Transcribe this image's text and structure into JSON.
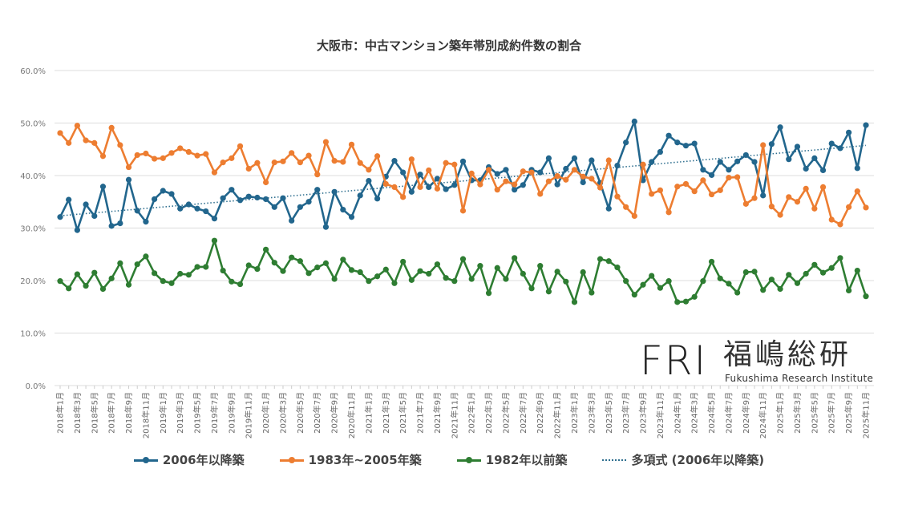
{
  "chart_data": {
    "type": "line",
    "title": "大阪市：中古マンション築年帯別成約件数の割合",
    "xlabel": "",
    "ylabel": "",
    "ylim": [
      0,
      60
    ],
    "yticks": [
      "0.0%",
      "10.0%",
      "20.0%",
      "30.0%",
      "40.0%",
      "50.0%",
      "60.0%"
    ],
    "grid": true,
    "legend_position": "bottom",
    "start": {
      "year": 2018,
      "month": 1
    },
    "end": {
      "year": 2025,
      "month": 11
    },
    "series": [
      {
        "name": "2006年以降築",
        "color": "#22668d",
        "values": [
          32.1,
          35.4,
          29.6,
          34.5,
          32.3,
          37.9,
          30.4,
          30.9,
          39.2,
          33.3,
          31.2,
          35.5,
          37.1,
          36.5,
          33.7,
          34.5,
          33.7,
          33.2,
          31.8,
          35.7,
          37.3,
          35.3,
          36.0,
          35.8,
          35.5,
          34.0,
          35.7,
          31.4,
          34.0,
          35.0,
          37.3,
          30.2,
          36.9,
          33.5,
          32.1,
          36.2,
          39.0,
          35.6,
          39.8,
          42.8,
          40.6,
          36.9,
          40.2,
          37.8,
          39.4,
          37.4,
          38.2,
          42.7,
          39.1,
          39.1,
          41.6,
          40.3,
          41.1,
          37.3,
          38.2,
          41.1,
          40.6,
          43.3,
          38.3,
          41.3,
          43.3,
          38.7,
          42.9,
          38.6,
          33.7,
          41.9,
          46.3,
          50.3,
          39.1,
          42.6,
          44.5,
          47.6,
          46.3,
          45.7,
          46.1,
          41.1,
          40.1,
          42.6,
          41.1,
          42.7,
          43.9,
          42.6,
          36.2,
          46.0,
          49.2,
          43.1,
          45.5,
          41.3,
          43.3,
          41.0,
          46.1,
          45.2,
          48.2,
          41.4,
          49.6
        ]
      },
      {
        "name": "1983年~2005年築",
        "color": "#ed7d31",
        "values": [
          48.1,
          46.2,
          49.5,
          46.7,
          46.2,
          43.7,
          49.1,
          45.8,
          41.6,
          43.9,
          44.2,
          43.2,
          43.3,
          44.3,
          45.2,
          44.5,
          43.8,
          44.1,
          40.6,
          42.5,
          43.3,
          45.6,
          41.3,
          42.4,
          38.7,
          42.5,
          42.7,
          44.3,
          42.5,
          43.8,
          40.2,
          46.4,
          42.8,
          42.6,
          45.9,
          42.4,
          41.1,
          43.7,
          38.4,
          37.8,
          35.9,
          43.1,
          37.8,
          41.0,
          37.5,
          42.4,
          42.1,
          33.3,
          40.4,
          38.3,
          41.1,
          37.3,
          38.9,
          38.3,
          40.8,
          40.6,
          36.5,
          38.9,
          39.9,
          39.2,
          41.1,
          39.8,
          39.4,
          37.7,
          42.9,
          36.0,
          34.0,
          32.3,
          42.1,
          36.5,
          37.2,
          33.0,
          37.9,
          38.4,
          37.0,
          39.1,
          36.4,
          37.2,
          39.6,
          39.7,
          34.6,
          35.7,
          45.8,
          34.1,
          32.5,
          35.9,
          35.0,
          37.5,
          33.7,
          37.8,
          31.6,
          30.7,
          34.0,
          37.0,
          33.9
        ]
      },
      {
        "name": "1982年以前築",
        "color": "#2e7d32",
        "values": [
          19.9,
          18.5,
          21.2,
          19.0,
          21.5,
          18.4,
          20.4,
          23.3,
          19.2,
          23.1,
          24.6,
          21.4,
          19.9,
          19.5,
          21.3,
          21.1,
          22.6,
          22.6,
          27.6,
          21.9,
          19.8,
          19.3,
          22.9,
          22.2,
          25.9,
          23.4,
          21.8,
          24.4,
          23.7,
          21.4,
          22.5,
          23.3,
          20.3,
          24.0,
          22.0,
          21.6,
          19.9,
          20.8,
          22.1,
          19.5,
          23.6,
          20.1,
          21.8,
          21.3,
          23.1,
          20.5,
          19.9,
          24.1,
          20.3,
          22.8,
          17.6,
          22.4,
          20.3,
          24.3,
          21.3,
          18.5,
          22.8,
          17.9,
          21.7,
          19.8,
          15.9,
          21.6,
          17.7,
          24.1,
          23.7,
          22.5,
          19.9,
          17.3,
          19.2,
          20.9,
          18.6,
          19.9,
          15.9,
          16.0,
          16.9,
          19.9,
          23.6,
          20.4,
          19.4,
          17.7,
          21.6,
          21.7,
          18.2,
          20.2,
          18.4,
          21.1,
          19.5,
          21.3,
          23.0,
          21.5,
          22.4,
          24.3,
          18.1,
          21.9,
          17.0
        ]
      }
    ],
    "trendline": {
      "name": "多項式 (2006年以降築)",
      "of_series": 0,
      "type": "polynomial",
      "color": "#2f6f8f"
    }
  },
  "logo": {
    "mark": "FRI",
    "name_jp": "福嶋総研",
    "name_en": "Fukushima Research Institute"
  }
}
